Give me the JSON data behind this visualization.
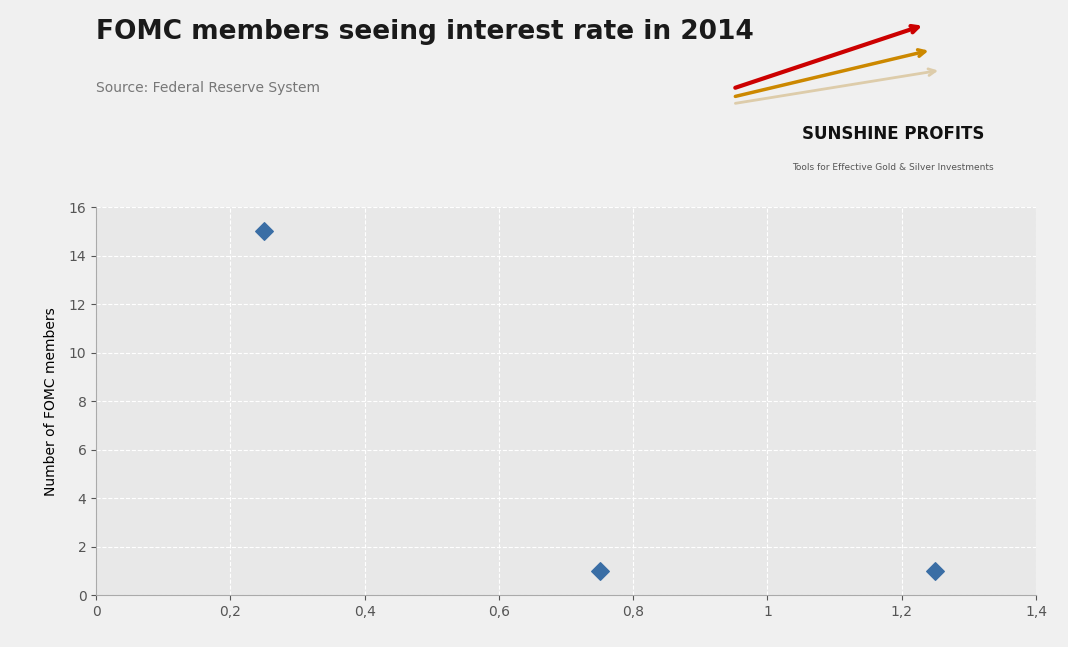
{
  "title": "FOMC members seeing interest rate in 2014",
  "source": "Source: Federal Reserve System",
  "ylabel": "Number of FOMC members",
  "xlabel": "",
  "x_data": [
    0.25,
    0.75,
    1.25
  ],
  "y_data": [
    15,
    1,
    1
  ],
  "xlim": [
    0,
    1.4
  ],
  "ylim": [
    0,
    16
  ],
  "xticks": [
    0,
    0.2,
    0.4,
    0.6,
    0.8,
    1.0,
    1.2,
    1.4
  ],
  "xtick_labels": [
    "0",
    "0,2",
    "0,4",
    "0,6",
    "0,8",
    "1",
    "1,2",
    "1,4"
  ],
  "yticks": [
    0,
    2,
    4,
    6,
    8,
    10,
    12,
    14,
    16
  ],
  "marker_color": "#3a6ea5",
  "marker_size": 80,
  "plot_bg_color": "#e8e8e8",
  "fig_bg_color": "#f0f0f0",
  "title_fontsize": 19,
  "source_fontsize": 10,
  "axis_label_fontsize": 10,
  "tick_fontsize": 10,
  "grid_color": "#ffffff",
  "grid_linestyle": "--",
  "grid_linewidth": 0.8,
  "logo_text": "SUNSHINE PROFITS",
  "logo_subtext": "Tools for Effective Gold & Silver Investments",
  "arrow_colors": [
    "#cc0000",
    "#cc8800",
    "#ddccaa"
  ],
  "title_color": "#1a1a1a",
  "source_color": "#777777"
}
